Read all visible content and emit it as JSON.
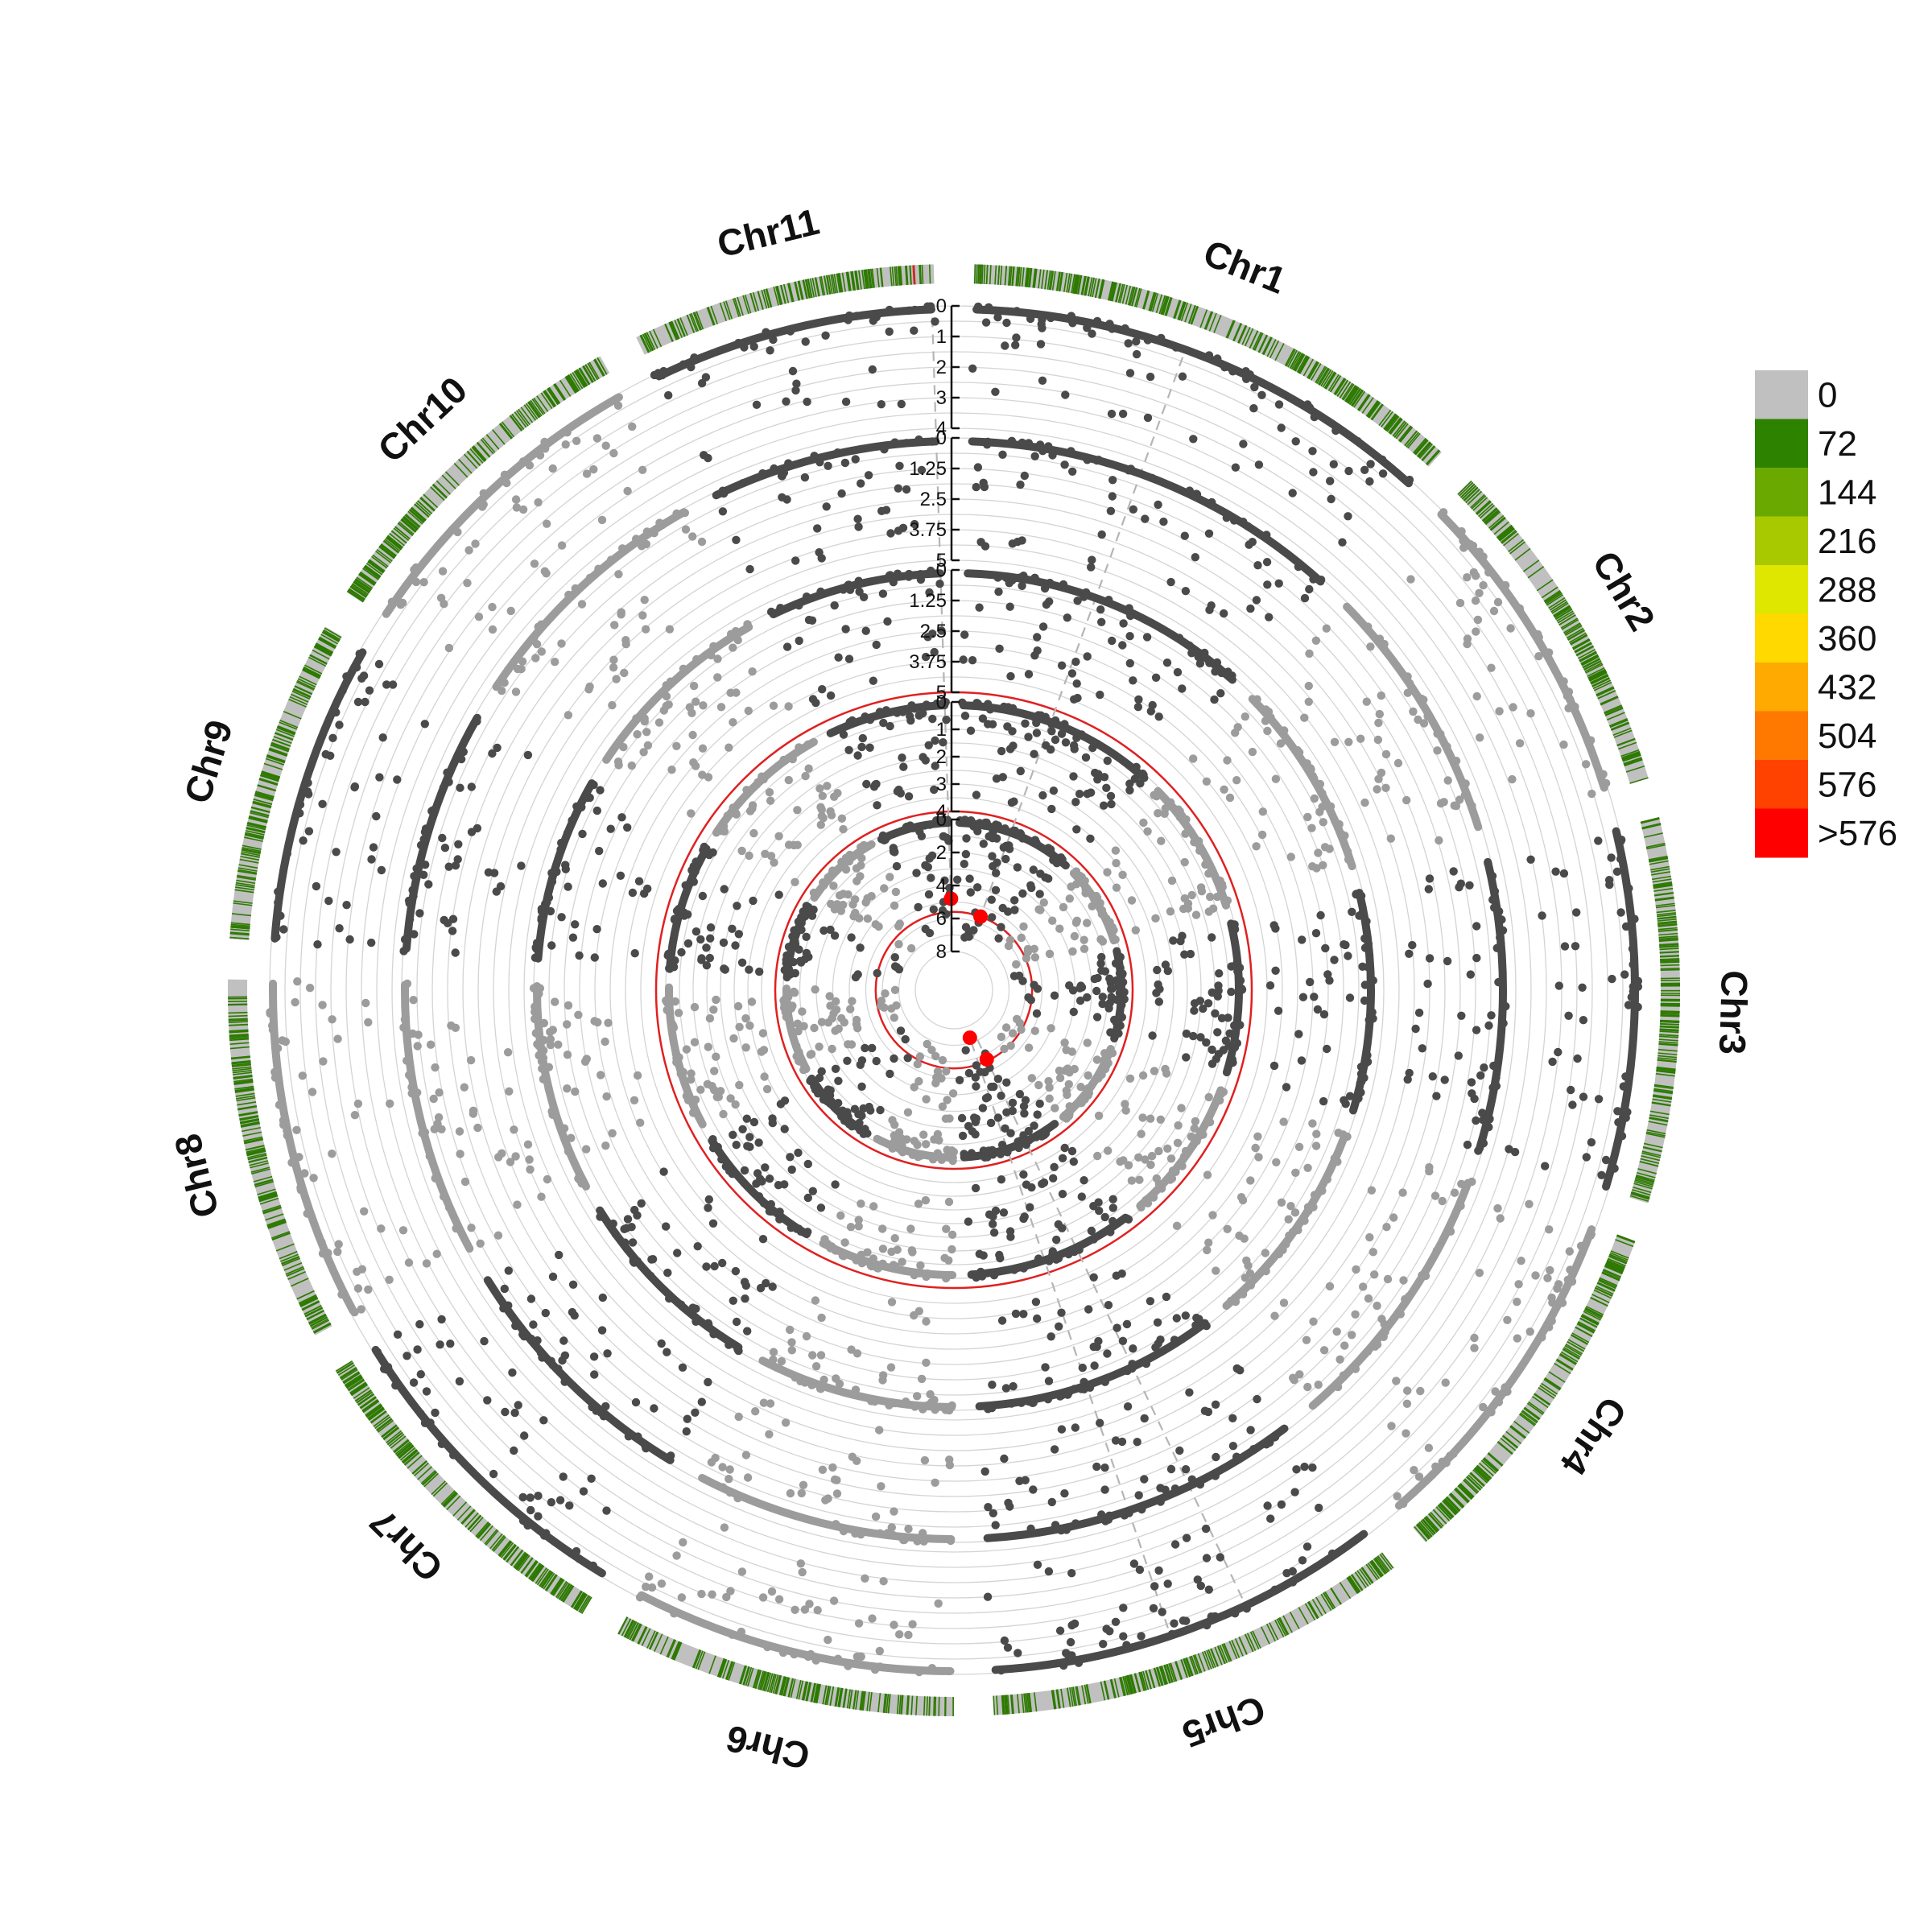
{
  "chart_data": {
    "type": "scatter",
    "subtype": "circular-manhattan",
    "chromosomes": [
      {
        "name": "Chr1",
        "length_fraction": 0.125
      },
      {
        "name": "Chr2",
        "length_fraction": 0.085
      },
      {
        "name": "Chr3",
        "length_fraction": 0.095
      },
      {
        "name": "Chr4",
        "length_fraction": 0.09
      },
      {
        "name": "Chr5",
        "length_fraction": 0.105
      },
      {
        "name": "Chr6",
        "length_fraction": 0.085
      },
      {
        "name": "Chr7",
        "length_fraction": 0.085
      },
      {
        "name": "Chr8",
        "length_fraction": 0.09
      },
      {
        "name": "Chr9",
        "length_fraction": 0.08
      },
      {
        "name": "Chr10",
        "length_fraction": 0.085
      },
      {
        "name": "Chr11",
        "length_fraction": 0.075
      }
    ],
    "tracks": [
      {
        "ticks": [
          "0",
          "1",
          "2",
          "3",
          "4"
        ],
        "ylim": [
          0,
          4
        ],
        "threshold": null
      },
      {
        "ticks": [
          "0",
          "1.25",
          "2.5",
          "3.75",
          "5"
        ],
        "ylim": [
          0,
          5
        ],
        "threshold": null
      },
      {
        "ticks": [
          "0",
          "1.25",
          "2.5",
          "3.75",
          "5"
        ],
        "ylim": [
          0,
          5
        ],
        "threshold": 5
      },
      {
        "ticks": [
          "0",
          "1",
          "2",
          "3",
          "4"
        ],
        "ylim": [
          0,
          4
        ],
        "threshold": 4
      },
      {
        "ticks": [
          "0",
          "2",
          "4",
          "6",
          "8"
        ],
        "ylim": [
          0,
          8
        ],
        "threshold": 5.6
      }
    ],
    "significant_points": [
      {
        "track": 4,
        "chromosome": "Chr11",
        "position": 0.99,
        "value": 4.8
      },
      {
        "track": 4,
        "chromosome": "Chr1",
        "position": 0.45,
        "value": 5.6
      },
      {
        "track": 4,
        "chromosome": "Chr5",
        "position": 0.55,
        "value": 7.3
      },
      {
        "track": 4,
        "chromosome": "Chr5",
        "position": 0.35,
        "value": 5.7
      }
    ],
    "highlight_lines": [
      "Chr1",
      "Chr5"
    ],
    "density_legend": {
      "labels": [
        "0",
        "72",
        "144",
        "216",
        "288",
        "360",
        "432",
        "504",
        "576",
        ">576"
      ],
      "colors": [
        "#c0c0c0",
        "#2d8200",
        "#6aaa00",
        "#a8c800",
        "#dfe600",
        "#ffd900",
        "#ffaa00",
        "#ff7800",
        "#ff4200",
        "#ff0000"
      ]
    },
    "colors": {
      "dark_points": "#4a4a4a",
      "light_points": "#9c9c9c",
      "threshold": "#e02020",
      "significant": "#ff0000",
      "density_base": "#c0c0c0",
      "density_mark": "#2d7a00"
    }
  }
}
